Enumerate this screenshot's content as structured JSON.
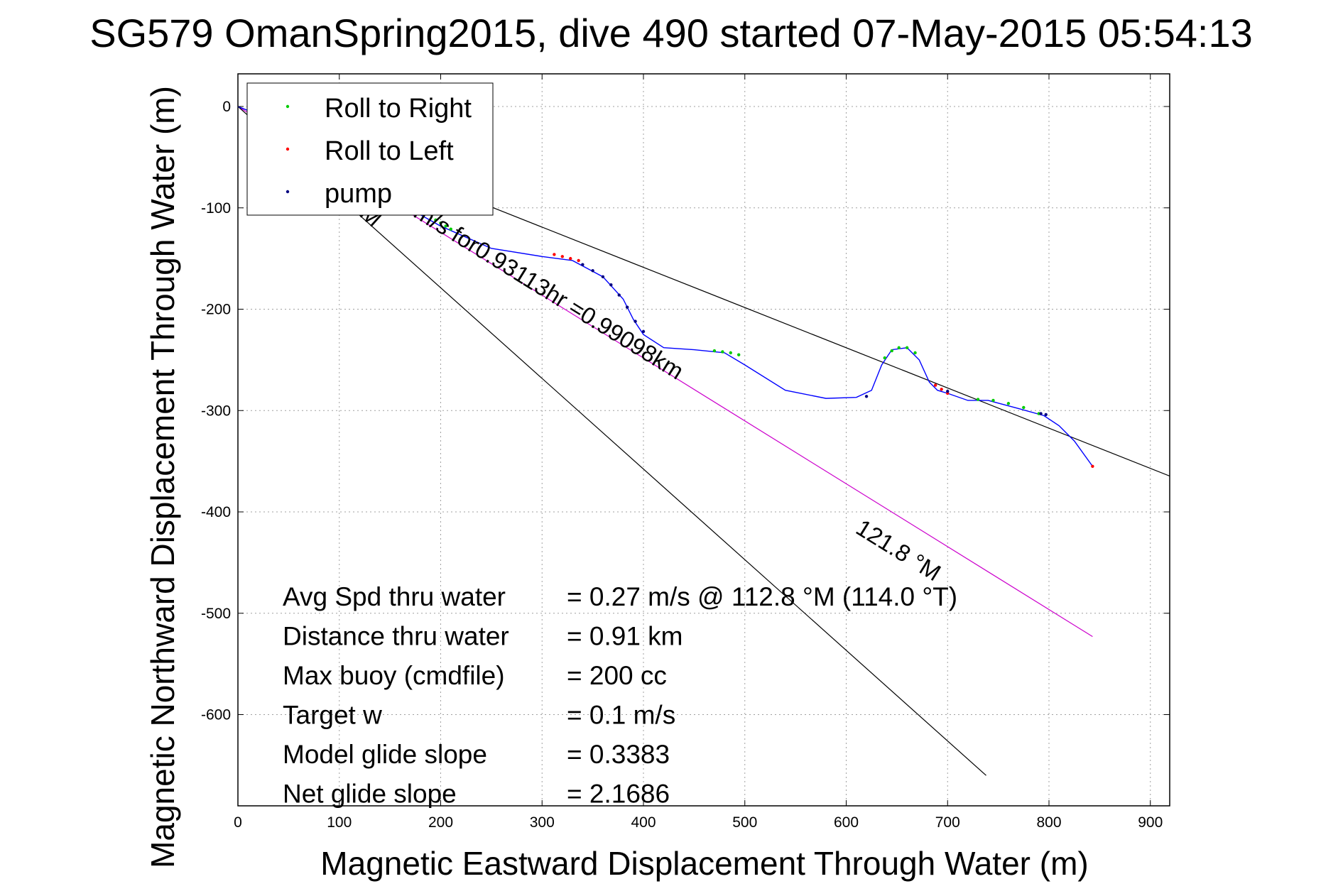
{
  "chart_data": {
    "type": "line",
    "title": "SG579 OmanSpring2015, dive 490 started 07-May-2015 05:54:13",
    "xlabel": "Magnetic Eastward Displacement Through Water (m)",
    "ylabel": "Magnetic Northward Displacement Through Water (m)",
    "xlim": [
      0,
      920
    ],
    "ylim": [
      -690,
      35
    ],
    "x_ticks": [
      0,
      100,
      200,
      300,
      400,
      500,
      600,
      700,
      800,
      900
    ],
    "y_ticks": [
      0,
      -100,
      -200,
      -300,
      -400,
      -500,
      -600
    ],
    "grid": true,
    "legend_position": "top-left",
    "legend": [
      {
        "name": "Roll to Right",
        "color": "#00cc00"
      },
      {
        "name": "Roll to Left",
        "color": "#ff0000"
      },
      {
        "name": "pump",
        "color": "#000080"
      }
    ],
    "track": {
      "color": "#0000ff",
      "x": [
        0,
        20,
        50,
        100,
        150,
        200,
        250,
        300,
        330,
        360,
        380,
        390,
        400,
        420,
        450,
        480,
        500,
        540,
        580,
        610,
        625,
        635,
        645,
        660,
        672,
        682,
        690,
        700,
        720,
        740,
        770,
        795,
        810,
        825,
        843
      ],
      "y": [
        0,
        -8,
        -30,
        -62,
        -90,
        -118,
        -140,
        -148,
        -152,
        -168,
        -190,
        -210,
        -225,
        -238,
        -240,
        -243,
        -255,
        -280,
        -288,
        -287,
        -280,
        -255,
        -240,
        -238,
        -250,
        -272,
        -280,
        -283,
        -290,
        -290,
        -298,
        -305,
        -315,
        -330,
        -355
      ]
    },
    "events": [
      {
        "type": "Roll to Right",
        "x": [
          195,
          200,
          205,
          210
        ],
        "y": [
          -112,
          -115,
          -118,
          -121
        ]
      },
      {
        "type": "Roll to Right",
        "x": [
          470,
          478,
          486,
          494
        ],
        "y": [
          -241,
          -242,
          -243,
          -245
        ]
      },
      {
        "type": "Roll to Right",
        "x": [
          638,
          645,
          652,
          660,
          668
        ],
        "y": [
          -248,
          -241,
          -238,
          -238,
          -243
        ]
      },
      {
        "type": "Roll to Right",
        "x": [
          730,
          745,
          760,
          775,
          790
        ],
        "y": [
          -289,
          -290,
          -293,
          -297,
          -303
        ]
      },
      {
        "type": "Roll to Left",
        "x": [
          312,
          320,
          328,
          336
        ],
        "y": [
          -146,
          -148,
          -150,
          -152
        ]
      },
      {
        "type": "Roll to Left",
        "x": [
          688,
          694,
          700
        ],
        "y": [
          -275,
          -279,
          -283
        ]
      },
      {
        "type": "Roll to Left",
        "x": [
          843
        ],
        "y": [
          -355
        ]
      },
      {
        "type": "pump",
        "x": [
          340,
          350,
          360,
          368,
          376,
          384,
          392,
          400
        ],
        "y": [
          -156,
          -162,
          -168,
          -176,
          -186,
          -198,
          -212,
          -222
        ]
      },
      {
        "type": "pump",
        "x": [
          620
        ],
        "y": [
          -286
        ]
      },
      {
        "type": "pump",
        "x": [
          700
        ],
        "y": [
          -281
        ]
      },
      {
        "type": "pump",
        "x": [
          792,
          797
        ],
        "y": [
          -303,
          -304
        ]
      }
    ],
    "reference_lines": [
      {
        "name": "magnetic-heading-line",
        "color": "#cc00cc",
        "x": [
          0,
          843
        ],
        "y": [
          0,
          -523
        ]
      },
      {
        "name": "black-upper-line",
        "color": "#000000",
        "x": [
          0,
          920
        ],
        "y": [
          0,
          -365
        ]
      },
      {
        "name": "black-lower-line",
        "color": "#000000",
        "x": [
          0,
          738
        ],
        "y": [
          0,
          -660
        ]
      }
    ],
    "annotations": {
      "heading_label": "121.8 °M",
      "lower_line_label": "°M",
      "distance_label": "m/s for0.93113hr =0.99098km"
    },
    "stats": [
      {
        "label": "Avg Spd thru water",
        "value": "=  0.27 m/s @ 112.8 °M (114.0 °T)"
      },
      {
        "label": "Distance thru water",
        "value": "=  0.91 km"
      },
      {
        "label": "Max buoy (cmdfile)",
        "value": "= 200 cc"
      },
      {
        "label": "Target w",
        "value": "= 0.1 m/s"
      },
      {
        "label": "Model glide slope",
        "value": "= 0.3383"
      },
      {
        "label": "Net glide slope",
        "value": "= 2.1686"
      }
    ]
  }
}
